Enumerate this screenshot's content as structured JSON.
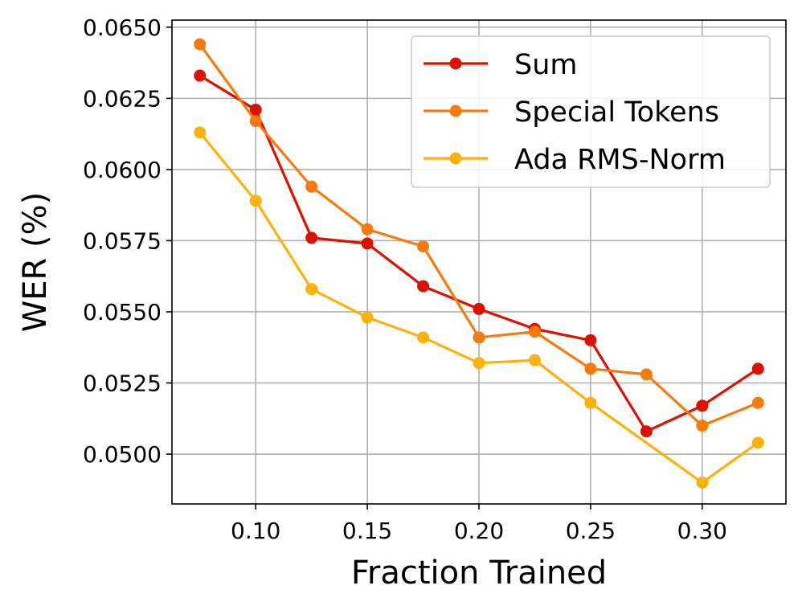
{
  "chart_data": {
    "type": "line",
    "xlabel": "Fraction Trained",
    "ylabel": "WER (%)",
    "xlim": [
      0.0625,
      0.3375
    ],
    "ylim": [
      0.04825,
      0.06525
    ],
    "xticks": [
      0.1,
      0.15,
      0.2,
      0.25,
      0.3
    ],
    "xtick_labels": [
      "0.10",
      "0.15",
      "0.20",
      "0.25",
      "0.30"
    ],
    "yticks": [
      0.05,
      0.0525,
      0.055,
      0.0575,
      0.06,
      0.0625,
      0.065
    ],
    "ytick_labels": [
      "0.0500",
      "0.0525",
      "0.0550",
      "0.0575",
      "0.0600",
      "0.0625",
      "0.0650"
    ],
    "grid": true,
    "legend_position": "top-right",
    "x": [
      0.075,
      0.1,
      0.125,
      0.15,
      0.175,
      0.2,
      0.225,
      0.25,
      0.275,
      0.3,
      0.325
    ],
    "series": [
      {
        "name": "Sum",
        "color": "#dd1100",
        "values": [
          0.0633,
          0.0621,
          0.0576,
          0.0574,
          0.0559,
          0.0551,
          0.0544,
          0.054,
          0.0508,
          0.0517,
          0.053
        ]
      },
      {
        "name": "Special Tokens",
        "color": "#f77a0f",
        "values": [
          0.0644,
          0.0617,
          0.0594,
          0.0579,
          0.0573,
          0.0541,
          0.0543,
          0.053,
          0.0528,
          0.051,
          0.0518
        ]
      },
      {
        "name": "Ada RMS-Norm",
        "color": "#fbb20d",
        "values": [
          0.0613,
          0.0589,
          0.0558,
          0.0548,
          0.0541,
          0.0532,
          0.0533,
          0.0518,
          null,
          0.049,
          0.0504
        ]
      }
    ]
  }
}
